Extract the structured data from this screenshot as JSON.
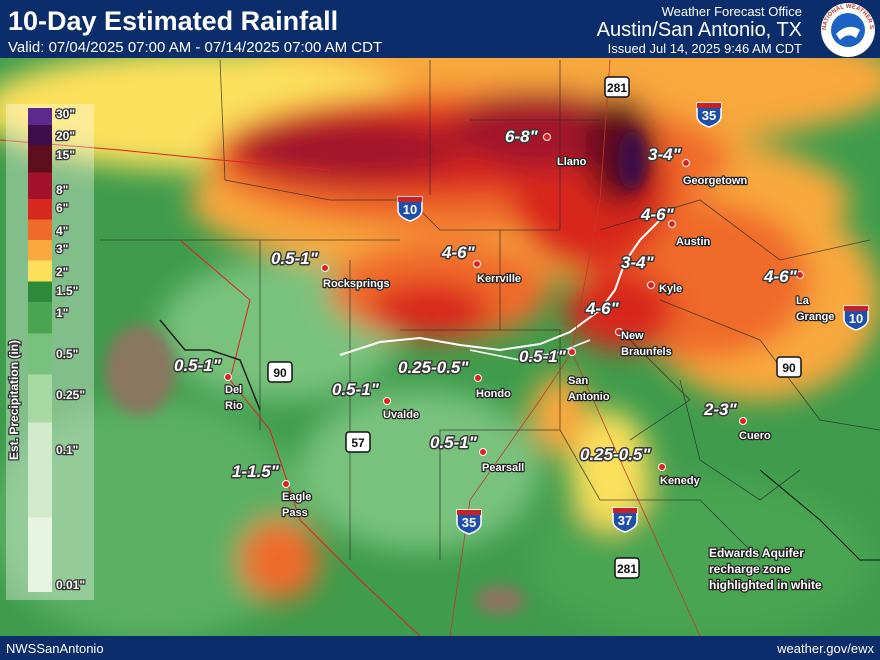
{
  "header": {
    "title": "10-Day Estimated Rainfall",
    "valid": "Valid: 07/04/2025 07:00 AM - 07/14/2025 07:00 AM CDT",
    "office": "Weather Forecast Office",
    "location": "Austin/San Antonio, TX",
    "issued": "Issued Jul 14, 2025 9:46 AM CDT",
    "logo_text": "NATIONAL WEATHER SERVICE"
  },
  "legend": {
    "title": "Est. Precipitation (in)",
    "bins": [
      {
        "label": "30\"",
        "color": "#5b2a8e"
      },
      {
        "label": "20\"",
        "color": "#3e0e4a"
      },
      {
        "label": "15\"",
        "color": "#5e0f1c"
      },
      {
        "label": "8\"",
        "color": "#a3122a"
      },
      {
        "label": "6\"",
        "color": "#d9281f"
      },
      {
        "label": "4\"",
        "color": "#f06b2b"
      },
      {
        "label": "3\"",
        "color": "#f8a83c"
      },
      {
        "label": "2\"",
        "color": "#fce05b"
      },
      {
        "label": "1.5\"",
        "color": "#2d8a3b"
      },
      {
        "label": "1\"",
        "color": "#4aa551"
      },
      {
        "label": "0.5\"",
        "color": "#79c27d"
      },
      {
        "label": "0.25\"",
        "color": "#a9d9a2"
      },
      {
        "label": "0.1\"",
        "color": "#d2ebca"
      },
      {
        "label": "0.01\"",
        "color": "#e6f4e1"
      }
    ]
  },
  "cities": [
    {
      "lines": [
        "Llano"
      ]
    },
    {
      "lines": [
        "Georgetown"
      ]
    },
    {
      "lines": [
        "Austin"
      ]
    },
    {
      "lines": [
        "Kerrville"
      ]
    },
    {
      "lines": [
        "Rocksprings"
      ]
    },
    {
      "lines": [
        "Kyle"
      ]
    },
    {
      "lines": [
        "La",
        "Grange"
      ]
    },
    {
      "lines": [
        "New",
        "Braunfels"
      ]
    },
    {
      "lines": [
        "San",
        "Antonio"
      ]
    },
    {
      "lines": [
        "Hondo"
      ]
    },
    {
      "lines": [
        "Del",
        "Rio"
      ]
    },
    {
      "lines": [
        "Uvalde"
      ]
    },
    {
      "lines": [
        "Cuero"
      ]
    },
    {
      "lines": [
        "Pearsall"
      ]
    },
    {
      "lines": [
        "Kenedy"
      ]
    },
    {
      "lines": [
        "Eagle",
        "Pass"
      ]
    }
  ],
  "rainfall_labels": [
    "6-8\"",
    "3-4\"",
    "4-6\"",
    "4-6\"",
    "0.5-1\"",
    "3-4\"",
    "4-6\"",
    "4-6\"",
    "0.5-1\"",
    "0.25-0.5\"",
    "0.5-1\"",
    "0.5-1\"",
    "2-3\"",
    "0.5-1\"",
    "0.25-0.5\"",
    "1-1.5\""
  ],
  "highways": [
    {
      "label": "281",
      "kind": "us"
    },
    {
      "label": "35",
      "kind": "interstate"
    },
    {
      "label": "10",
      "kind": "interstate"
    },
    {
      "label": "90",
      "kind": "us"
    },
    {
      "label": "57",
      "kind": "us"
    },
    {
      "label": "35",
      "kind": "interstate"
    },
    {
      "label": "37",
      "kind": "interstate"
    },
    {
      "label": "281",
      "kind": "us"
    },
    {
      "label": "10",
      "kind": "interstate"
    },
    {
      "label": "90",
      "kind": "us"
    }
  ],
  "note": [
    "Edwards Aquifer",
    "recharge zone",
    "highlighted in white"
  ],
  "footer": {
    "left": "NWSSanAntonio",
    "right": "weather.gov/ewx"
  }
}
